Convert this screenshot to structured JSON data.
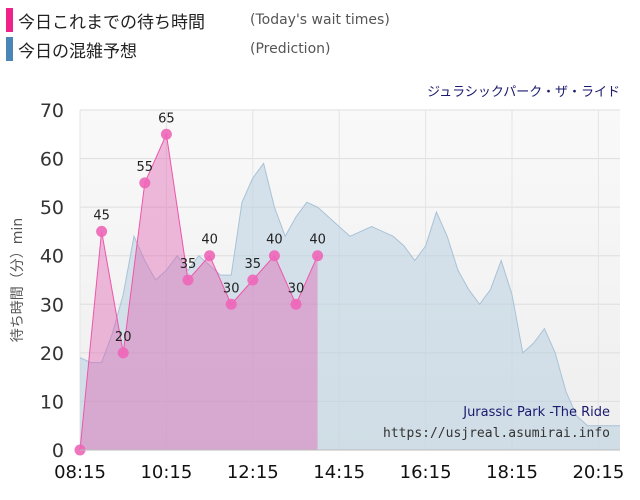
{
  "legend": [
    {
      "label": "今日これまでの待ち時間",
      "sublabel": "(Today's wait times)",
      "color": "#ee2288"
    },
    {
      "label": "今日の混雑予想",
      "sublabel": "(Prediction)",
      "color": "#4a86b8"
    }
  ],
  "chart_data": {
    "type": "area",
    "title": "ジュラシックパーク・ザ・ライド",
    "subtitle": "Jurassic Park -The Ride",
    "source": "https://usjreal.asumirai.info",
    "ylabel": "待ち時間（分）min",
    "xlabel": "",
    "ylim": [
      0,
      70
    ],
    "xlim": [
      "08:15",
      "20:45"
    ],
    "yticks": [
      0,
      10,
      20,
      30,
      40,
      50,
      60,
      70
    ],
    "xticks": [
      "08:15",
      "10:15",
      "12:15",
      "14:15",
      "16:15",
      "18:15",
      "20:15"
    ],
    "grid": true,
    "series": [
      {
        "name": "今日これまでの待ち時間",
        "color": "#ee2288",
        "x": [
          "08:15",
          "08:45",
          "09:15",
          "09:45",
          "10:15",
          "10:45",
          "11:15",
          "11:45",
          "12:15",
          "12:45",
          "13:15",
          "13:45"
        ],
        "values": [
          0,
          45,
          20,
          55,
          65,
          35,
          40,
          30,
          35,
          40,
          30,
          40
        ]
      },
      {
        "name": "今日の混雑予想",
        "color": "#b8cfe0",
        "x": [
          "08:15",
          "08:30",
          "08:45",
          "09:00",
          "09:15",
          "09:30",
          "09:45",
          "10:00",
          "10:15",
          "10:30",
          "10:45",
          "11:00",
          "11:15",
          "11:30",
          "11:45",
          "12:00",
          "12:15",
          "12:30",
          "12:45",
          "13:00",
          "13:15",
          "13:30",
          "13:45",
          "14:00",
          "14:15",
          "14:30",
          "14:45",
          "15:00",
          "15:15",
          "15:30",
          "15:45",
          "16:00",
          "16:15",
          "16:30",
          "16:45",
          "17:00",
          "17:15",
          "17:30",
          "17:45",
          "18:00",
          "18:15",
          "18:30",
          "18:45",
          "19:00",
          "19:15",
          "19:30",
          "19:45",
          "20:00",
          "20:15",
          "20:30",
          "20:45"
        ],
        "values": [
          19,
          18,
          18,
          24,
          32,
          44,
          39,
          35,
          37,
          40,
          37,
          40,
          38,
          36,
          36,
          51,
          56,
          59,
          50,
          44,
          48,
          51,
          50,
          48,
          46,
          44,
          45,
          46,
          45,
          44,
          42,
          39,
          42,
          49,
          44,
          37,
          33,
          30,
          33,
          39,
          32,
          20,
          22,
          25,
          20,
          12,
          7,
          5,
          5,
          5,
          5
        ]
      }
    ]
  }
}
